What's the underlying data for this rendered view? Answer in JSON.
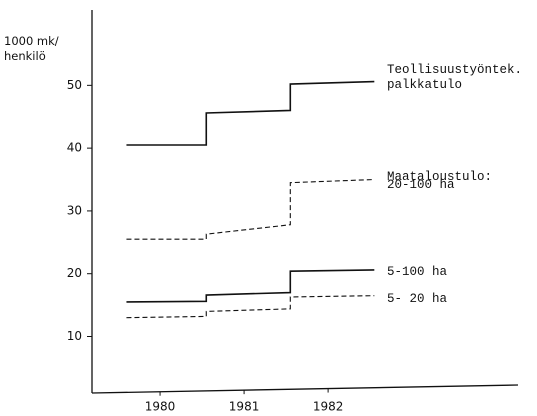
{
  "chart_data": {
    "type": "line",
    "y_label": "1000 mk/ henkilö",
    "annotations": [
      "Maataloustulo:"
    ],
    "xlim": [
      1979.19,
      1984.26
    ],
    "xticks": [
      1980,
      1981,
      1982
    ],
    "ylim": [
      1,
      62
    ],
    "yticks": [
      10,
      20,
      30,
      40,
      50
    ],
    "series": [
      {
        "name": "Teollisuustyöntek. palkkatulo",
        "color": "#111",
        "dashed": false,
        "x": [
          1979.6,
          1980.55,
          1980.55,
          1981.55,
          1981.55,
          1982.55
        ],
        "values": [
          40.5,
          40.5,
          45.6,
          46.0,
          50.2,
          50.6
        ]
      },
      {
        "name": "20-100 ha",
        "color": "#111",
        "dashed": true,
        "x": [
          1979.6,
          1980.55,
          1980.55,
          1981.55,
          1981.55,
          1982.55
        ],
        "values": [
          25.5,
          25.5,
          26.3,
          27.8,
          34.5,
          35.0
        ]
      },
      {
        "name": "5-100 ha",
        "color": "#111",
        "dashed": false,
        "x": [
          1979.6,
          1980.55,
          1980.55,
          1981.55,
          1981.55,
          1982.55
        ],
        "values": [
          15.5,
          15.6,
          16.6,
          17.0,
          20.4,
          20.6
        ]
      },
      {
        "name": "5- 20 ha",
        "color": "#111",
        "dashed": true,
        "x": [
          1979.6,
          1980.55,
          1980.55,
          1981.55,
          1981.55,
          1982.55
        ],
        "values": [
          13.0,
          13.2,
          14.0,
          14.4,
          16.3,
          16.5
        ]
      }
    ]
  }
}
